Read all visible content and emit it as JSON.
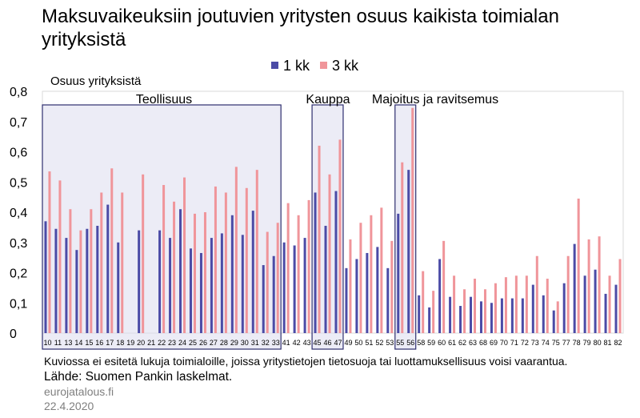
{
  "chart_data": {
    "type": "bar",
    "title": "Maksuvaikeuksiin joutuvien yritysten osuus kaikista toimialan yrityksistä",
    "ylabel": "Osuus yrityksistä",
    "xlabel": "",
    "ylim": [
      0,
      0.8
    ],
    "yticks": [
      {
        "value": 0,
        "label": "0"
      },
      {
        "value": 0.1,
        "label": "0,1"
      },
      {
        "value": 0.2,
        "label": "0,2"
      },
      {
        "value": 0.3,
        "label": "0,3"
      },
      {
        "value": 0.4,
        "label": "0,4"
      },
      {
        "value": 0.5,
        "label": "0,5"
      },
      {
        "value": 0.6,
        "label": "0,6"
      },
      {
        "value": 0.7,
        "label": "0,7"
      },
      {
        "value": 0.8,
        "label": "0,8"
      }
    ],
    "legend_position": "top-center",
    "categories": [
      "10",
      "11",
      "13",
      "14",
      "15",
      "16",
      "17",
      "18",
      "19",
      "20",
      "21",
      "22",
      "23",
      "24",
      "25",
      "26",
      "27",
      "28",
      "29",
      "30",
      "31",
      "32",
      "33",
      "41",
      "42",
      "43",
      "45",
      "46",
      "47",
      "49",
      "50",
      "51",
      "52",
      "53",
      "55",
      "56",
      "58",
      "59",
      "60",
      "61",
      "62",
      "63",
      "68",
      "69",
      "70",
      "71",
      "72",
      "73",
      "74",
      "75",
      "77",
      "78",
      "79",
      "80",
      "81",
      "82"
    ],
    "series": [
      {
        "name": "1 kk",
        "color": "#4b4ba6",
        "values": [
          0.37,
          0.345,
          0.315,
          0.275,
          0.345,
          0.355,
          0.425,
          0.3,
          null,
          0.34,
          null,
          0.34,
          0.315,
          0.41,
          0.28,
          0.265,
          0.315,
          0.33,
          0.39,
          0.325,
          0.405,
          0.225,
          0.255,
          0.3,
          0.29,
          0.315,
          0.465,
          0.355,
          0.47,
          0.215,
          0.245,
          0.265,
          0.285,
          0.215,
          0.395,
          0.54,
          0.125,
          0.085,
          0.245,
          0.12,
          0.09,
          0.12,
          0.105,
          0.1,
          0.115,
          0.115,
          0.115,
          0.16,
          0.125,
          0.075,
          0.165,
          0.295,
          0.19,
          0.21,
          0.13,
          0.16
        ]
      },
      {
        "name": "3 kk",
        "color": "#f0959a",
        "values": [
          0.535,
          0.505,
          0.41,
          0.34,
          0.41,
          0.465,
          0.545,
          0.465,
          null,
          0.525,
          null,
          0.49,
          0.435,
          0.515,
          0.395,
          0.4,
          0.485,
          0.465,
          0.55,
          0.48,
          0.54,
          0.335,
          0.365,
          0.43,
          0.39,
          0.44,
          0.62,
          0.525,
          0.64,
          0.31,
          0.365,
          0.39,
          0.415,
          0.305,
          0.565,
          0.745,
          0.205,
          0.14,
          0.305,
          0.19,
          0.145,
          0.18,
          0.145,
          0.165,
          0.185,
          0.19,
          0.19,
          0.255,
          0.18,
          0.105,
          0.255,
          0.445,
          0.31,
          0.32,
          0.19,
          0.245
        ]
      }
    ],
    "highlight_groups": [
      {
        "label": "Teollisuus",
        "from": "10",
        "to": "33"
      },
      {
        "label": "Kauppa",
        "from": "45",
        "to": "47"
      },
      {
        "label": "Majoitus ja ravitsemus",
        "from": "55",
        "to": "56"
      }
    ]
  },
  "footer": {
    "note": "Kuviossa ei esitetä lukuja toimialoille, joissa yritystietojen tietosuoja tai luottamuksellisuus voisi vaarantua.",
    "source": "Lähde: Suomen Pankin laskelmat.",
    "site": "eurojatalous.fi",
    "date": "22.4.2020"
  }
}
